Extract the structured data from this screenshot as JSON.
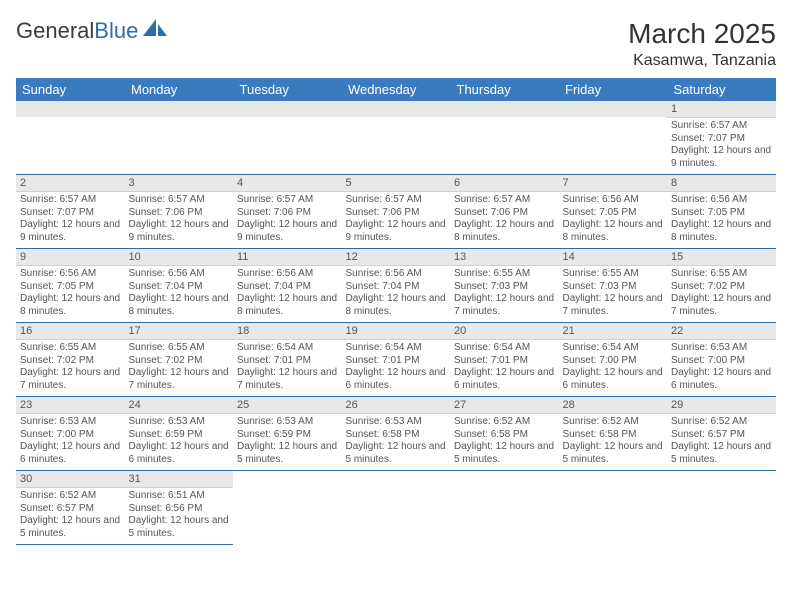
{
  "logo": {
    "text1": "General",
    "text2": "Blue"
  },
  "title": "March 2025",
  "location": "Kasamwa, Tanzania",
  "colors": {
    "header_bg": "#3a7bbf",
    "header_fg": "#ffffff",
    "rule": "#2d6ea8",
    "daynum_bg": "#e8e8e8"
  },
  "weekdays": [
    "Sunday",
    "Monday",
    "Tuesday",
    "Wednesday",
    "Thursday",
    "Friday",
    "Saturday"
  ],
  "weeks": [
    [
      null,
      null,
      null,
      null,
      null,
      null,
      {
        "n": "1",
        "sr": "6:57 AM",
        "ss": "7:07 PM",
        "dl": "12 hours and 9 minutes."
      }
    ],
    [
      {
        "n": "2",
        "sr": "6:57 AM",
        "ss": "7:07 PM",
        "dl": "12 hours and 9 minutes."
      },
      {
        "n": "3",
        "sr": "6:57 AM",
        "ss": "7:06 PM",
        "dl": "12 hours and 9 minutes."
      },
      {
        "n": "4",
        "sr": "6:57 AM",
        "ss": "7:06 PM",
        "dl": "12 hours and 9 minutes."
      },
      {
        "n": "5",
        "sr": "6:57 AM",
        "ss": "7:06 PM",
        "dl": "12 hours and 9 minutes."
      },
      {
        "n": "6",
        "sr": "6:57 AM",
        "ss": "7:06 PM",
        "dl": "12 hours and 8 minutes."
      },
      {
        "n": "7",
        "sr": "6:56 AM",
        "ss": "7:05 PM",
        "dl": "12 hours and 8 minutes."
      },
      {
        "n": "8",
        "sr": "6:56 AM",
        "ss": "7:05 PM",
        "dl": "12 hours and 8 minutes."
      }
    ],
    [
      {
        "n": "9",
        "sr": "6:56 AM",
        "ss": "7:05 PM",
        "dl": "12 hours and 8 minutes."
      },
      {
        "n": "10",
        "sr": "6:56 AM",
        "ss": "7:04 PM",
        "dl": "12 hours and 8 minutes."
      },
      {
        "n": "11",
        "sr": "6:56 AM",
        "ss": "7:04 PM",
        "dl": "12 hours and 8 minutes."
      },
      {
        "n": "12",
        "sr": "6:56 AM",
        "ss": "7:04 PM",
        "dl": "12 hours and 8 minutes."
      },
      {
        "n": "13",
        "sr": "6:55 AM",
        "ss": "7:03 PM",
        "dl": "12 hours and 7 minutes."
      },
      {
        "n": "14",
        "sr": "6:55 AM",
        "ss": "7:03 PM",
        "dl": "12 hours and 7 minutes."
      },
      {
        "n": "15",
        "sr": "6:55 AM",
        "ss": "7:02 PM",
        "dl": "12 hours and 7 minutes."
      }
    ],
    [
      {
        "n": "16",
        "sr": "6:55 AM",
        "ss": "7:02 PM",
        "dl": "12 hours and 7 minutes."
      },
      {
        "n": "17",
        "sr": "6:55 AM",
        "ss": "7:02 PM",
        "dl": "12 hours and 7 minutes."
      },
      {
        "n": "18",
        "sr": "6:54 AM",
        "ss": "7:01 PM",
        "dl": "12 hours and 7 minutes."
      },
      {
        "n": "19",
        "sr": "6:54 AM",
        "ss": "7:01 PM",
        "dl": "12 hours and 6 minutes."
      },
      {
        "n": "20",
        "sr": "6:54 AM",
        "ss": "7:01 PM",
        "dl": "12 hours and 6 minutes."
      },
      {
        "n": "21",
        "sr": "6:54 AM",
        "ss": "7:00 PM",
        "dl": "12 hours and 6 minutes."
      },
      {
        "n": "22",
        "sr": "6:53 AM",
        "ss": "7:00 PM",
        "dl": "12 hours and 6 minutes."
      }
    ],
    [
      {
        "n": "23",
        "sr": "6:53 AM",
        "ss": "7:00 PM",
        "dl": "12 hours and 6 minutes."
      },
      {
        "n": "24",
        "sr": "6:53 AM",
        "ss": "6:59 PM",
        "dl": "12 hours and 6 minutes."
      },
      {
        "n": "25",
        "sr": "6:53 AM",
        "ss": "6:59 PM",
        "dl": "12 hours and 5 minutes."
      },
      {
        "n": "26",
        "sr": "6:53 AM",
        "ss": "6:58 PM",
        "dl": "12 hours and 5 minutes."
      },
      {
        "n": "27",
        "sr": "6:52 AM",
        "ss": "6:58 PM",
        "dl": "12 hours and 5 minutes."
      },
      {
        "n": "28",
        "sr": "6:52 AM",
        "ss": "6:58 PM",
        "dl": "12 hours and 5 minutes."
      },
      {
        "n": "29",
        "sr": "6:52 AM",
        "ss": "6:57 PM",
        "dl": "12 hours and 5 minutes."
      }
    ],
    [
      {
        "n": "30",
        "sr": "6:52 AM",
        "ss": "6:57 PM",
        "dl": "12 hours and 5 minutes."
      },
      {
        "n": "31",
        "sr": "6:51 AM",
        "ss": "6:56 PM",
        "dl": "12 hours and 5 minutes."
      },
      null,
      null,
      null,
      null,
      null
    ]
  ],
  "labels": {
    "sunrise": "Sunrise:",
    "sunset": "Sunset:",
    "daylight": "Daylight:"
  }
}
